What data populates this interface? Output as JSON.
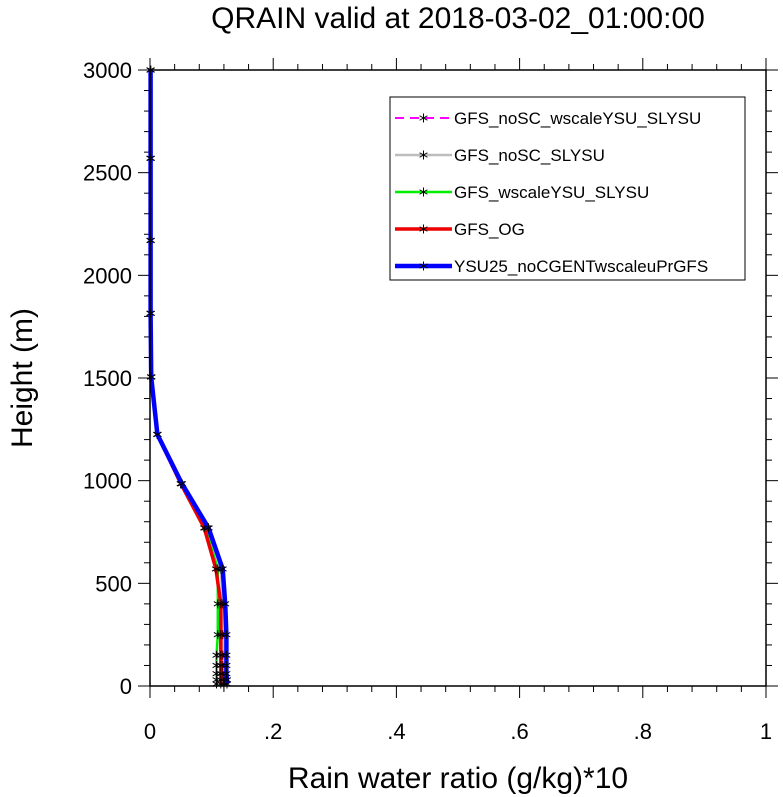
{
  "chart_data": {
    "type": "line",
    "title": "QRAIN valid at 2018-03-02_01:00:00",
    "xlabel": "Rain water ratio (g/kg)*10",
    "ylabel": "Height (m)",
    "xlim": [
      0,
      1
    ],
    "ylim": [
      0,
      3000
    ],
    "xticks": [
      {
        "value": 0,
        "label": "0"
      },
      {
        "value": 0.2,
        "label": ".2"
      },
      {
        "value": 0.4,
        "label": ".4"
      },
      {
        "value": 0.6,
        "label": ".6"
      },
      {
        "value": 0.8,
        "label": ".8"
      },
      {
        "value": 1,
        "label": "1"
      }
    ],
    "yticks": [
      {
        "value": 0,
        "label": "0"
      },
      {
        "value": 500,
        "label": "500"
      },
      {
        "value": 1000,
        "label": "1000"
      },
      {
        "value": 1500,
        "label": "1500"
      },
      {
        "value": 2000,
        "label": "2000"
      },
      {
        "value": 2500,
        "label": "2500"
      },
      {
        "value": 3000,
        "label": "3000"
      }
    ],
    "legend_position": "top-right",
    "grid": false,
    "series": [
      {
        "name": "GFS_noSC_wscaleYSU_SLYSU",
        "color": "#ff00ff",
        "width": 2,
        "dash": "9,6",
        "points": [
          [
            0.12,
            10
          ],
          [
            0.12,
            30
          ],
          [
            0.118,
            60
          ],
          [
            0.118,
            100
          ],
          [
            0.118,
            150
          ],
          [
            0.118,
            250
          ],
          [
            0.118,
            400
          ],
          [
            0.115,
            570
          ],
          [
            0.095,
            770
          ],
          [
            0.05,
            985
          ],
          [
            0.012,
            1225
          ],
          [
            0.002,
            1505
          ],
          [
            0.001,
            1815
          ],
          [
            0.001,
            2170
          ],
          [
            0.001,
            2570
          ],
          [
            0.001,
            3000
          ]
        ]
      },
      {
        "name": "GFS_noSC_SLYSU",
        "color": "#bdbdbd",
        "width": 2.5,
        "dash": "",
        "points": [
          [
            0.12,
            10
          ],
          [
            0.12,
            30
          ],
          [
            0.118,
            60
          ],
          [
            0.118,
            100
          ],
          [
            0.118,
            150
          ],
          [
            0.118,
            250
          ],
          [
            0.118,
            400
          ],
          [
            0.115,
            570
          ],
          [
            0.093,
            770
          ],
          [
            0.05,
            985
          ],
          [
            0.012,
            1225
          ],
          [
            0.002,
            1505
          ],
          [
            0.001,
            1815
          ],
          [
            0.001,
            2170
          ],
          [
            0.001,
            2570
          ],
          [
            0.001,
            3000
          ]
        ]
      },
      {
        "name": "GFS_wscaleYSU_SLYSU",
        "color": "#00ee00",
        "width": 2.5,
        "dash": "",
        "points": [
          [
            0.108,
            10
          ],
          [
            0.108,
            30
          ],
          [
            0.108,
            60
          ],
          [
            0.108,
            100
          ],
          [
            0.108,
            150
          ],
          [
            0.11,
            250
          ],
          [
            0.11,
            400
          ],
          [
            0.11,
            570
          ],
          [
            0.09,
            770
          ],
          [
            0.05,
            985
          ],
          [
            0.012,
            1225
          ],
          [
            0.002,
            1505
          ],
          [
            0.001,
            1815
          ],
          [
            0.001,
            2170
          ],
          [
            0.001,
            2570
          ],
          [
            0.001,
            3000
          ]
        ]
      },
      {
        "name": "GFS_OG",
        "color": "#ee0000",
        "width": 3.5,
        "dash": "",
        "points": [
          [
            0.115,
            10
          ],
          [
            0.115,
            30
          ],
          [
            0.115,
            60
          ],
          [
            0.115,
            100
          ],
          [
            0.115,
            150
          ],
          [
            0.115,
            250
          ],
          [
            0.115,
            400
          ],
          [
            0.107,
            570
          ],
          [
            0.088,
            770
          ],
          [
            0.05,
            985
          ],
          [
            0.012,
            1225
          ],
          [
            0.002,
            1505
          ],
          [
            0.001,
            1815
          ],
          [
            0.001,
            2170
          ],
          [
            0.001,
            2570
          ],
          [
            0.001,
            3000
          ]
        ]
      },
      {
        "name": "YSU25_noCGENTwscaleuPrGFS",
        "color": "#0000ff",
        "width": 4.5,
        "dash": "",
        "points": [
          [
            0.125,
            10
          ],
          [
            0.125,
            30
          ],
          [
            0.124,
            60
          ],
          [
            0.124,
            100
          ],
          [
            0.124,
            150
          ],
          [
            0.124,
            250
          ],
          [
            0.122,
            400
          ],
          [
            0.118,
            570
          ],
          [
            0.095,
            770
          ],
          [
            0.052,
            985
          ],
          [
            0.012,
            1225
          ],
          [
            0.002,
            1505
          ],
          [
            0.001,
            1815
          ],
          [
            0.001,
            2170
          ],
          [
            0.001,
            2570
          ],
          [
            0.001,
            3000
          ]
        ]
      }
    ]
  }
}
